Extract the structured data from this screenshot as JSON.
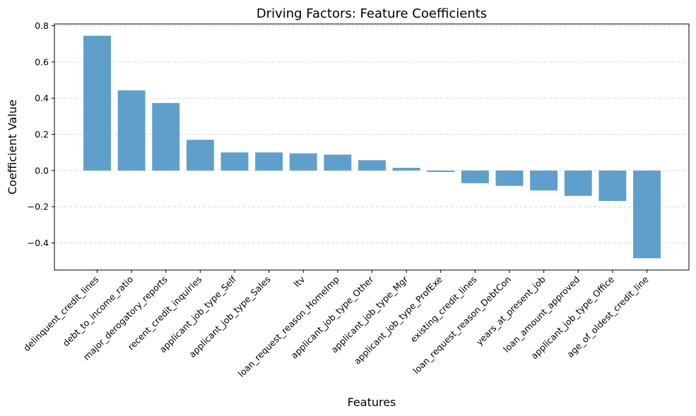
{
  "chart_data": {
    "type": "bar",
    "title": "Driving Factors: Feature Coefficients",
    "xlabel": "Features",
    "ylabel": "Coefficient Value",
    "ylim": [
      -0.55,
      0.81
    ],
    "yticks": [
      -0.4,
      -0.2,
      0.0,
      0.2,
      0.4,
      0.6,
      0.8
    ],
    "ytick_labels": [
      "−0.4",
      "−0.2",
      "0.0",
      "0.2",
      "0.4",
      "0.6",
      "0.8"
    ],
    "grid": "y, dashed",
    "bar_color": "#5f9fcc",
    "categories": [
      "delinquent_credit_lines",
      "debt_to_income_ratio",
      "major_derogatory_reports",
      "recent_credit_inquiries",
      "applicant_job_type_Self",
      "applicant_job_type_Sales",
      "ltv",
      "loan_request_reason_HomeImp",
      "applicant_job_type_Other",
      "applicant_job_type_Mgr",
      "applicant_job_type_ProfExe",
      "existing_credit_lines",
      "loan_request_reason_DebtCon",
      "years_at_present_job",
      "loan_amount_approved",
      "applicant_job_type_Office",
      "age_of_oldest_credit_line"
    ],
    "values": [
      0.745,
      0.443,
      0.373,
      0.17,
      0.1,
      0.1,
      0.095,
      0.088,
      0.057,
      0.015,
      -0.008,
      -0.07,
      -0.085,
      -0.11,
      -0.14,
      -0.168,
      -0.485
    ]
  }
}
